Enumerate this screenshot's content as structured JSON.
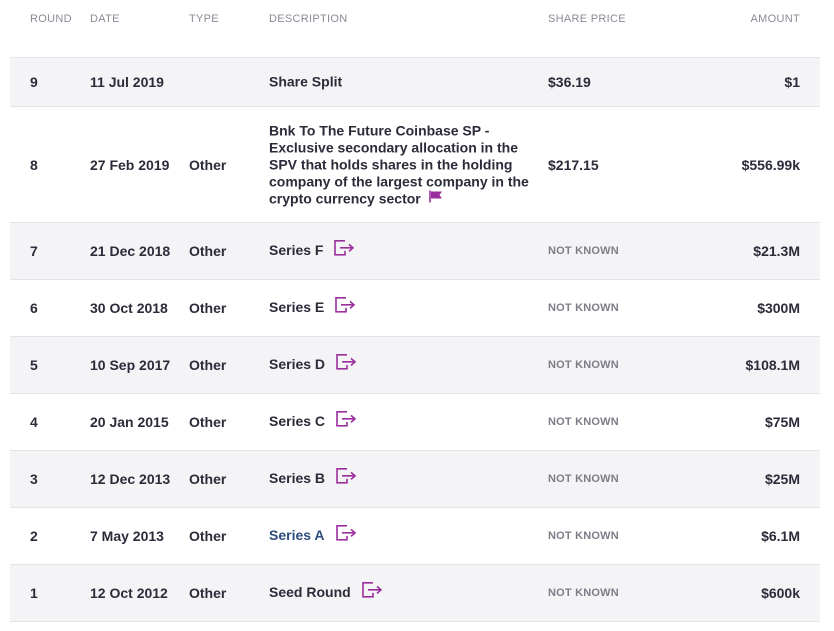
{
  "columns": {
    "round": "ROUND",
    "date": "DATE",
    "type": "TYPE",
    "description": "DESCRIPTION",
    "share_price": "SHARE PRICE",
    "amount": "AMOUNT"
  },
  "rows": [
    {
      "round": "9",
      "date": "11 Jul 2019",
      "type": "",
      "description": "Share Split",
      "share_price": "$36.19",
      "amount": "$1"
    },
    {
      "round": "8",
      "date": "27 Feb 2019",
      "type": "Other",
      "description": "Bnk To The Future Coinbase SP - Exclusive secondary allocation in the SPV that holds shares in the holding company of the largest company in the crypto currency sector",
      "share_price": "$217.15",
      "amount": "$556.99k"
    },
    {
      "round": "7",
      "date": "21 Dec 2018",
      "type": "Other",
      "description": "Series F",
      "share_price": "NOT KNOWN",
      "amount": "$21.3M"
    },
    {
      "round": "6",
      "date": "30 Oct 2018",
      "type": "Other",
      "description": "Series E",
      "share_price": "NOT KNOWN",
      "amount": "$300M"
    },
    {
      "round": "5",
      "date": "10 Sep 2017",
      "type": "Other",
      "description": "Series D",
      "share_price": "NOT KNOWN",
      "amount": "$108.1M"
    },
    {
      "round": "4",
      "date": "20 Jan 2015",
      "type": "Other",
      "description": "Series C",
      "share_price": "NOT KNOWN",
      "amount": "$75M"
    },
    {
      "round": "3",
      "date": "12 Dec 2013",
      "type": "Other",
      "description": "Series B",
      "share_price": "NOT KNOWN",
      "amount": "$25M"
    },
    {
      "round": "2",
      "date": "7 May 2013",
      "type": "Other",
      "description": "Series A",
      "share_price": "NOT KNOWN",
      "amount": "$6.1M"
    },
    {
      "round": "1",
      "date": "12 Oct 2012",
      "type": "Other",
      "description": "Seed Round",
      "share_price": "NOT KNOWN",
      "amount": "$600k"
    }
  ],
  "icons": {
    "external": "external-link-icon",
    "flag": "flag-icon"
  },
  "colors": {
    "accent": "#9b2f9e",
    "link": "#2f4e7d",
    "row_shade": "#f4f4f6"
  }
}
